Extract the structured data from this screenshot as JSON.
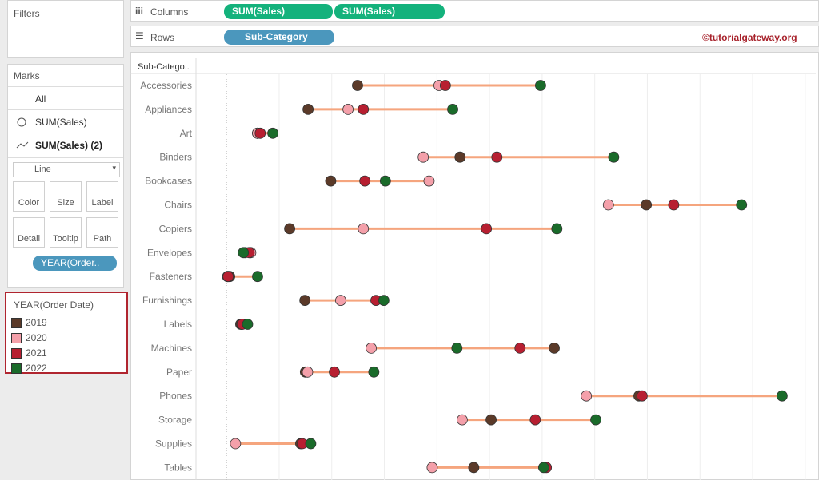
{
  "panes": {
    "filters": "Filters",
    "columns": "Columns",
    "columns_pills": [
      "SUM(Sales)",
      "SUM(Sales)"
    ],
    "rows": "Rows",
    "rows_pill": "Sub-Category",
    "watermark": "©tutorialgateway.org",
    "marks": {
      "title": "Marks",
      "cards": [
        "All",
        "SUM(Sales)",
        "SUM(Sales) (2)"
      ],
      "mark_type": "Line",
      "buttons": [
        "Color",
        "Size",
        "Label",
        "Detail",
        "Tooltip",
        "Path"
      ],
      "pill": "YEAR(Order.."
    }
  },
  "chart_data": {
    "type": "dumbbell",
    "row_header": "Sub-Catego..",
    "legend_title": "YEAR(Order Date)",
    "categories": [
      "Accessories",
      "Appliances",
      "Art",
      "Binders",
      "Bookcases",
      "Chairs",
      "Copiers",
      "Envelopes",
      "Fasteners",
      "Furnishings",
      "Labels",
      "Machines",
      "Paper",
      "Phones",
      "Storage",
      "Supplies",
      "Tables"
    ],
    "series": [
      {
        "name": "2019",
        "color": "#5b3a29",
        "values": [
          24900,
          15500,
          5900,
          44400,
          19800,
          79800,
          12000,
          3500,
          600,
          14900,
          2700,
          62300,
          15000,
          78400,
          50300,
          14100,
          47000
        ]
      },
      {
        "name": "2020",
        "color": "#f4a0aa",
        "values": [
          40400,
          23100,
          5900,
          37400,
          38500,
          72600,
          26000,
          4600,
          200,
          21700,
          2900,
          27500,
          15400,
          68400,
          44800,
          1700,
          39100
        ]
      },
      {
        "name": "2021",
        "color": "#b71f31",
        "values": [
          41600,
          26000,
          6400,
          51400,
          26300,
          85000,
          49400,
          4300,
          300,
          28400,
          3000,
          55800,
          20500,
          79000,
          58700,
          14400,
          60800
        ]
      },
      {
        "name": "2022",
        "color": "#1a6b2a",
        "values": [
          59700,
          43000,
          8800,
          73600,
          30200,
          97900,
          62800,
          3200,
          5900,
          29900,
          4000,
          43800,
          28000,
          105600,
          70200,
          16000,
          60300
        ]
      }
    ],
    "line_color": "#f5a57e",
    "xlim": [
      -5800,
      112000
    ],
    "xticks": [
      0,
      10000,
      20000,
      30000,
      40000,
      50000,
      60000,
      70000,
      80000,
      90000,
      100000,
      110000
    ],
    "grid": true
  }
}
